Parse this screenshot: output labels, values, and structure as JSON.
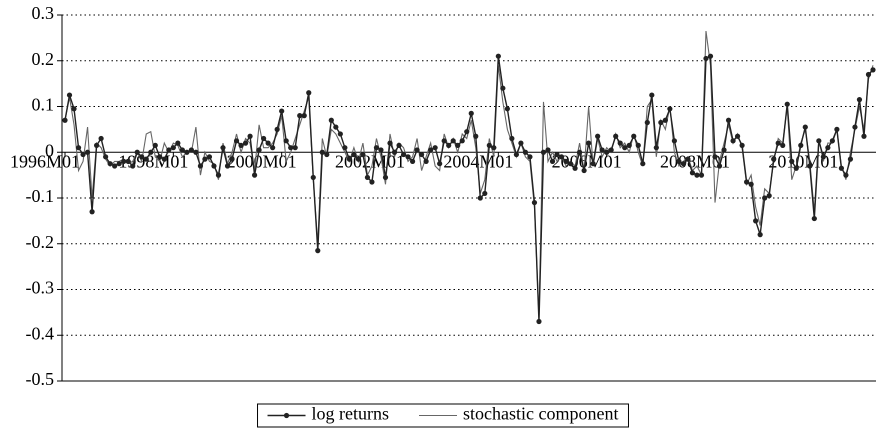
{
  "chart_data": {
    "type": "line",
    "categories": [
      "1996M01",
      null,
      null,
      null,
      null,
      null,
      null,
      null,
      null,
      null,
      null,
      null,
      null,
      null,
      null,
      null,
      null,
      null,
      null,
      null,
      null,
      null,
      null,
      null,
      "1998M01",
      null,
      null,
      null,
      null,
      null,
      null,
      null,
      null,
      null,
      null,
      null,
      null,
      null,
      null,
      null,
      null,
      null,
      null,
      null,
      null,
      null,
      null,
      null,
      "2000M01",
      null,
      null,
      null,
      null,
      null,
      null,
      null,
      null,
      null,
      null,
      null,
      null,
      null,
      null,
      null,
      null,
      null,
      null,
      null,
      null,
      null,
      null,
      null,
      "2002M01",
      null,
      null,
      null,
      null,
      null,
      null,
      null,
      null,
      null,
      null,
      null,
      null,
      null,
      null,
      null,
      null,
      null,
      null,
      null,
      null,
      null,
      null,
      null,
      "2004M01",
      null,
      null,
      null,
      null,
      null,
      null,
      null,
      null,
      null,
      null,
      null,
      null,
      null,
      null,
      null,
      null,
      null,
      null,
      null,
      null,
      null,
      null,
      null,
      "2006M01",
      null,
      null,
      null,
      null,
      null,
      null,
      null,
      null,
      null,
      null,
      null,
      null,
      null,
      null,
      null,
      null,
      null,
      null,
      null,
      null,
      null,
      null,
      null,
      "2008M01",
      null,
      null,
      null,
      null,
      null,
      null,
      null,
      null,
      null,
      null,
      null,
      null,
      null,
      null,
      null,
      null,
      null,
      null,
      null,
      null,
      null,
      null,
      null,
      "2010M01",
      null,
      null,
      null,
      null,
      null,
      null,
      null,
      null,
      null,
      null,
      null
    ],
    "series": [
      {
        "name": "log returns",
        "color": "#222222",
        "marker": true,
        "values": [
          0.07,
          0.125,
          0.095,
          0.01,
          -0.005,
          0.0,
          -0.13,
          0.015,
          0.03,
          -0.01,
          -0.025,
          -0.03,
          -0.025,
          -0.02,
          -0.02,
          -0.03,
          0.0,
          -0.01,
          -0.015,
          0.0,
          0.015,
          -0.01,
          -0.015,
          0.005,
          0.01,
          0.02,
          0.005,
          0.0,
          0.005,
          0.0,
          -0.03,
          -0.015,
          -0.01,
          -0.03,
          -0.05,
          0.01,
          -0.03,
          -0.015,
          0.025,
          0.015,
          0.02,
          0.035,
          -0.05,
          0.005,
          0.03,
          0.02,
          0.01,
          0.05,
          0.09,
          0.025,
          0.01,
          0.01,
          0.08,
          0.08,
          0.13,
          -0.055,
          -0.215,
          0.0,
          -0.005,
          0.07,
          0.055,
          0.04,
          0.01,
          -0.015,
          -0.005,
          -0.015,
          -0.005,
          -0.055,
          -0.065,
          0.01,
          0.005,
          -0.055,
          0.02,
          0.0,
          0.015,
          -0.005,
          -0.01,
          -0.02,
          0.005,
          -0.005,
          -0.02,
          0.005,
          0.01,
          -0.025,
          0.025,
          0.015,
          0.025,
          0.015,
          0.025,
          0.045,
          0.085,
          0.035,
          -0.1,
          -0.09,
          0.015,
          0.01,
          0.21,
          0.14,
          0.095,
          0.03,
          -0.005,
          0.02,
          0.0,
          -0.01,
          -0.11,
          -0.37,
          0.0,
          0.005,
          -0.02,
          -0.005,
          -0.01,
          -0.02,
          -0.025,
          -0.035,
          0.0,
          -0.04,
          0.02,
          -0.025,
          0.035,
          0.005,
          0.0,
          0.005,
          0.035,
          0.02,
          0.01,
          0.015,
          0.035,
          0.015,
          -0.025,
          0.065,
          0.125,
          0.01,
          0.065,
          0.07,
          0.095,
          0.025,
          -0.02,
          -0.025,
          -0.015,
          -0.045,
          -0.05,
          -0.05,
          0.205,
          0.21,
          -0.01,
          -0.03,
          0.005,
          0.07,
          0.025,
          0.035,
          0.015,
          -0.065,
          -0.07,
          -0.15,
          -0.18,
          -0.1,
          -0.095,
          -0.015,
          0.02,
          0.015,
          0.105,
          -0.02,
          -0.035,
          0.015,
          0.055,
          -0.03,
          -0.145,
          0.025,
          -0.01,
          0.01,
          0.025,
          0.05,
          -0.035,
          -0.05,
          -0.015,
          0.055,
          0.115,
          0.035,
          0.17,
          0.18
        ]
      },
      {
        "name": "stochastic component",
        "color": "#666666",
        "marker": false,
        "values": [
          0.07,
          0.12,
          0.06,
          -0.04,
          -0.02,
          0.055,
          -0.1,
          0.02,
          0.01,
          -0.015,
          -0.03,
          -0.02,
          -0.02,
          -0.015,
          -0.025,
          -0.02,
          0.0,
          -0.02,
          0.04,
          0.045,
          -0.01,
          -0.02,
          0.02,
          0.0,
          0.02,
          0.015,
          -0.01,
          0.0,
          0.0,
          0.055,
          -0.05,
          0.0,
          -0.02,
          -0.025,
          -0.06,
          0.02,
          -0.025,
          0.0,
          0.04,
          0.0,
          0.03,
          0.02,
          -0.04,
          0.06,
          0.01,
          0.01,
          0.02,
          0.04,
          0.08,
          -0.02,
          0.0,
          0.03,
          0.06,
          0.09,
          0.12,
          -0.06,
          -0.2,
          0.03,
          -0.01,
          0.05,
          0.04,
          0.02,
          0.0,
          -0.02,
          0.01,
          -0.02,
          0.02,
          -0.05,
          -0.03,
          0.03,
          -0.01,
          -0.07,
          0.04,
          -0.01,
          0.02,
          0.01,
          -0.02,
          -0.01,
          0.03,
          -0.04,
          -0.01,
          0.02,
          -0.03,
          -0.04,
          0.04,
          0.01,
          0.03,
          0.0,
          0.04,
          0.03,
          0.07,
          0.01,
          -0.09,
          -0.06,
          0.03,
          -0.01,
          0.19,
          0.11,
          0.05,
          0.02,
          -0.01,
          0.02,
          -0.01,
          -0.02,
          -0.12,
          -0.36,
          0.11,
          -0.02,
          0.0,
          -0.02,
          -0.01,
          -0.03,
          -0.02,
          -0.03,
          0.02,
          -0.04,
          0.1,
          -0.03,
          0.03,
          -0.01,
          0.01,
          0.0,
          0.04,
          0.01,
          0.02,
          0.0,
          0.04,
          0.0,
          -0.03,
          0.1,
          0.115,
          -0.01,
          0.07,
          0.05,
          0.1,
          0.0,
          -0.03,
          -0.02,
          -0.01,
          -0.04,
          -0.03,
          -0.05,
          0.265,
          0.19,
          -0.11,
          -0.02,
          0.02,
          0.06,
          0.02,
          0.04,
          0.01,
          -0.07,
          -0.05,
          -0.12,
          -0.16,
          -0.08,
          -0.09,
          -0.02,
          0.03,
          0.02,
          0.1,
          -0.06,
          -0.03,
          0.02,
          0.05,
          -0.02,
          -0.13,
          0.03,
          -0.02,
          0.02,
          0.02,
          0.05,
          -0.03,
          -0.06,
          0.0,
          0.05,
          0.1,
          0.05,
          0.16,
          0.19
        ]
      }
    ],
    "ylim": [
      -0.5,
      0.3
    ],
    "yticks": [
      0.3,
      0.2,
      0.1,
      0,
      -0.1,
      -0.2,
      -0.3,
      -0.4,
      -0.5
    ],
    "grid": true,
    "legend": "bottom"
  }
}
